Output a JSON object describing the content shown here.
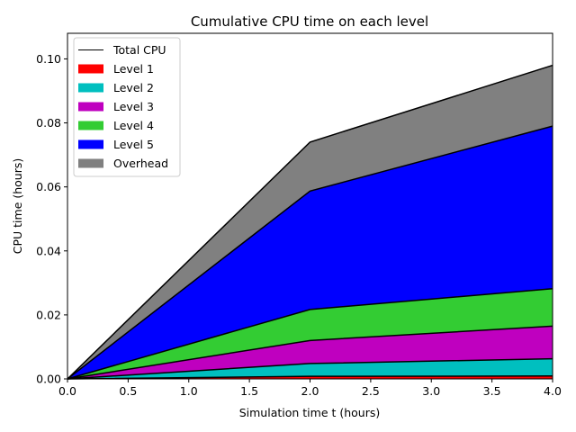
{
  "chart_data": {
    "type": "area",
    "title": "Cumulative CPU time on each level",
    "xlabel": "Simulation time t (hours)",
    "ylabel": "CPU time (hours)",
    "xlim": [
      0.0,
      4.0
    ],
    "ylim": [
      0.0,
      0.108
    ],
    "xticks": [
      "0.0",
      "0.5",
      "1.0",
      "1.5",
      "2.0",
      "2.5",
      "3.0",
      "3.5",
      "4.0"
    ],
    "xtick_values": [
      0.0,
      0.5,
      1.0,
      1.5,
      2.0,
      2.5,
      3.0,
      3.5,
      4.0
    ],
    "yticks": [
      "0.00",
      "0.02",
      "0.04",
      "0.06",
      "0.08",
      "0.10"
    ],
    "ytick_values": [
      0.0,
      0.02,
      0.04,
      0.06,
      0.08,
      0.1
    ],
    "x": [
      0.0,
      2.0,
      4.0
    ],
    "series": [
      {
        "name": "Level 1",
        "color": "#ff0000",
        "values": [
          0.0,
          0.0008,
          0.0009
        ]
      },
      {
        "name": "Level 2",
        "color": "#00bfbf",
        "values": [
          0.0,
          0.004,
          0.0054
        ]
      },
      {
        "name": "Level 3",
        "color": "#bf00bf",
        "values": [
          0.0,
          0.0072,
          0.0102
        ]
      },
      {
        "name": "Level 4",
        "color": "#33cc33",
        "values": [
          0.0,
          0.0097,
          0.0117
        ]
      },
      {
        "name": "Level 5",
        "color": "#0000ff",
        "values": [
          0.0,
          0.037,
          0.0508
        ]
      },
      {
        "name": "Overhead",
        "color": "#808080",
        "values": [
          0.0,
          0.0153,
          0.019
        ]
      }
    ],
    "total": {
      "name": "Total CPU",
      "color": "#000000",
      "values": [
        0.0,
        0.074,
        0.098
      ]
    },
    "legend_position": "top-left",
    "grid": false
  }
}
